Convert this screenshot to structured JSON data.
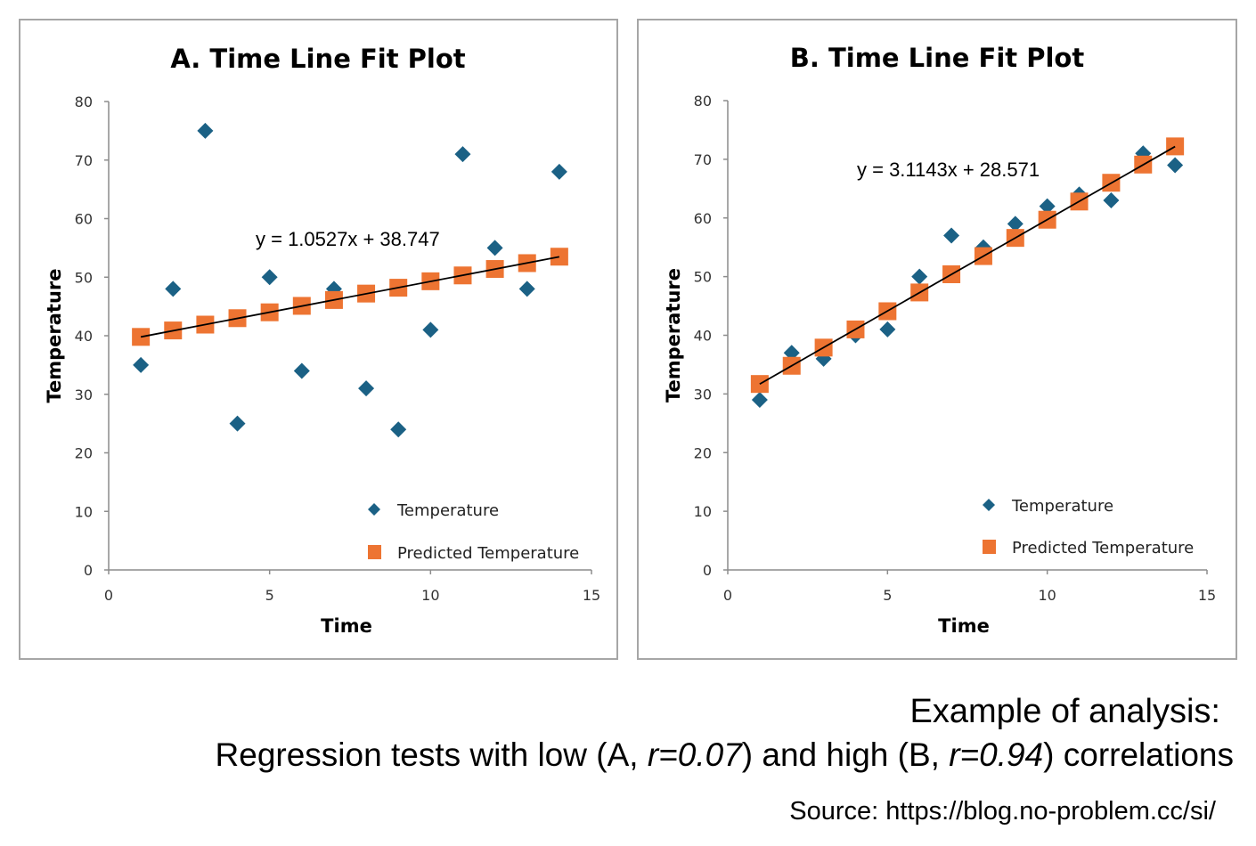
{
  "chart_data": [
    {
      "type": "scatter",
      "title": "A. Time Line Fit  Plot",
      "xlabel": "Time",
      "ylabel": "Temperature",
      "xlim": [
        0,
        15
      ],
      "ylim": [
        0,
        80
      ],
      "xticks": [
        0,
        5,
        10,
        15
      ],
      "yticks": [
        0,
        10,
        20,
        30,
        40,
        50,
        60,
        70,
        80
      ],
      "grid": false,
      "legend_position": "bottom-right",
      "trendline": {
        "equation": "y = 1.0527x + 38.747",
        "slope": 1.0527,
        "intercept": 38.747,
        "x_range": [
          1,
          14
        ]
      },
      "x": [
        1,
        2,
        3,
        4,
        5,
        6,
        7,
        8,
        9,
        10,
        11,
        12,
        13,
        14
      ],
      "series": [
        {
          "name": "Temperature",
          "marker": "diamond",
          "color": "#1b6185",
          "values": [
            35,
            48,
            75,
            25,
            50,
            34,
            48,
            31,
            24,
            41,
            71,
            55,
            48,
            68
          ]
        },
        {
          "name": "Predicted Temperature",
          "marker": "square",
          "color": "#ed7432",
          "values": [
            39.8,
            40.9,
            41.9,
            43.0,
            44.0,
            45.1,
            46.1,
            47.2,
            48.2,
            49.3,
            50.3,
            51.4,
            52.4,
            53.5
          ]
        }
      ]
    },
    {
      "type": "scatter",
      "title": "B. Time Line Fit  Plot",
      "xlabel": "Time",
      "ylabel": "Temperature",
      "xlim": [
        0,
        15
      ],
      "ylim": [
        0,
        80
      ],
      "xticks": [
        0,
        5,
        10,
        15
      ],
      "yticks": [
        0,
        10,
        20,
        30,
        40,
        50,
        60,
        70,
        80
      ],
      "grid": false,
      "legend_position": "bottom-right",
      "trendline": {
        "equation": "y = 3.1143x + 28.571",
        "slope": 3.1143,
        "intercept": 28.571,
        "x_range": [
          1,
          14
        ]
      },
      "x": [
        1,
        2,
        3,
        4,
        5,
        6,
        7,
        8,
        9,
        10,
        11,
        12,
        13,
        14
      ],
      "series": [
        {
          "name": "Temperature",
          "marker": "diamond",
          "color": "#1b6185",
          "values": [
            29,
            37,
            36,
            40,
            41,
            50,
            57,
            55,
            59,
            62,
            64,
            63,
            71,
            69
          ]
        },
        {
          "name": "Predicted Temperature",
          "marker": "square",
          "color": "#ed7432",
          "values": [
            31.7,
            34.8,
            37.9,
            41.0,
            44.1,
            47.3,
            50.4,
            53.5,
            56.6,
            59.7,
            62.8,
            66.0,
            69.1,
            72.2
          ]
        }
      ]
    }
  ],
  "caption": {
    "heading": "Example of analysis:",
    "line_parts": [
      "Regression tests with low (A, ",
      "r=0.07",
      ") and high (B, ",
      "r=0.94",
      ") correlations"
    ],
    "source": "Source: https://blog.no-problem.cc/si/"
  }
}
